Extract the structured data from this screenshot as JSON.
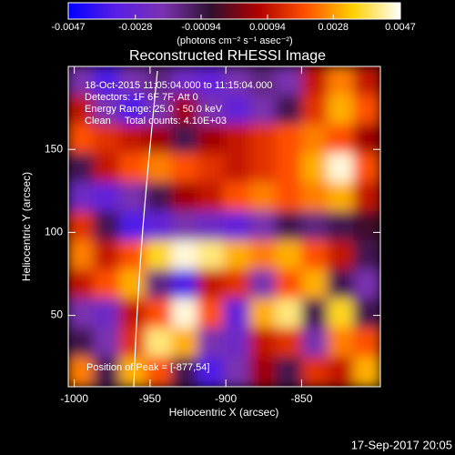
{
  "chart_data": {
    "type": "image",
    "title": "Reconstructed RHESSI Image",
    "xlabel": "Heliocentric X (arcsec)",
    "ylabel": "Heliocentric Y (arcsec)",
    "colorbar_label": "(photons cm⁻² s⁻¹ asec⁻²)",
    "annotations": [
      "18-Oct-2015 11:05:04.000 to 11:15:04.000",
      "Detectors: 1F 6F 7F, Att 0",
      "Energy Range: 25.0 - 50.0 keV",
      "Clean     Total counts: 4.10E+03"
    ],
    "peak_label": "Position of Peak = [-877,54]",
    "timestamp": "17-Sep-2017 20:05",
    "xlim": [
      -1004,
      -798
    ],
    "ylim": [
      7,
      200
    ],
    "xticks": [
      -1000,
      -950,
      -900,
      -850
    ],
    "yticks": [
      50,
      100,
      150
    ],
    "clim": [
      -0.0047,
      0.0047
    ],
    "cticks": [
      -0.0047,
      -0.0028,
      -0.00094,
      0.00094,
      0.0028,
      0.0047
    ],
    "colormap": [
      "#0000ff",
      "#5a1ee6",
      "#7a32b0",
      "#301030",
      "#b00000",
      "#ff5000",
      "#ffd000",
      "#ffffff"
    ],
    "z": [
      [
        -0.002,
        -0.0035,
        -0.002,
        -0.0015,
        -0.0025,
        -0.003,
        -0.002,
        -0.0015,
        -0.002,
        0.001,
        0.0025,
        0.001
      ],
      [
        0.001,
        -0.002,
        -0.0035,
        -0.002,
        0.0005,
        -0.002,
        -0.003,
        -0.002,
        -0.001,
        0.0015,
        0.003,
        0.002
      ],
      [
        0.002,
        0.0015,
        0.001,
        0.0005,
        -0.001,
        0.0005,
        0.001,
        0.0015,
        0.002,
        0.0025,
        0.002,
        0.0005
      ],
      [
        -0.001,
        0.001,
        0.002,
        0.0025,
        0.002,
        0.0015,
        0.001,
        0.0015,
        0.002,
        0.003,
        0.0045,
        0.002
      ],
      [
        -0.0025,
        -0.003,
        -0.002,
        -0.001,
        0.0005,
        0.001,
        0.002,
        0.0025,
        0.002,
        0.0025,
        0.003,
        0.001
      ],
      [
        0.0015,
        -0.001,
        -0.0035,
        -0.003,
        -0.002,
        -0.0025,
        -0.003,
        -0.002,
        -0.001,
        -0.0015,
        -0.001,
        -0.0005
      ],
      [
        0.0025,
        0.001,
        0.002,
        0.0035,
        0.0045,
        0.004,
        0.003,
        0.0025,
        0.003,
        0.002,
        0.001,
        -0.001
      ],
      [
        0.001,
        0.002,
        0.003,
        -0.0015,
        -0.0035,
        0.001,
        0.0015,
        -0.002,
        0.002,
        0.003,
        -0.001,
        -0.002
      ],
      [
        -0.002,
        -0.0025,
        0.001,
        0.002,
        0.0045,
        0.002,
        -0.003,
        0.003,
        0.004,
        -0.001,
        0.0035,
        -0.001
      ],
      [
        -0.001,
        -0.002,
        0.0015,
        0.004,
        0.003,
        -0.002,
        -0.0025,
        0.001,
        0.0015,
        -0.002,
        0.0025,
        0.002
      ],
      [
        0.0025,
        -0.001,
        0.003,
        0.002,
        -0.001,
        -0.0035,
        -0.002,
        0.0005,
        -0.001,
        0.0015,
        0.001,
        0.003
      ]
    ]
  }
}
